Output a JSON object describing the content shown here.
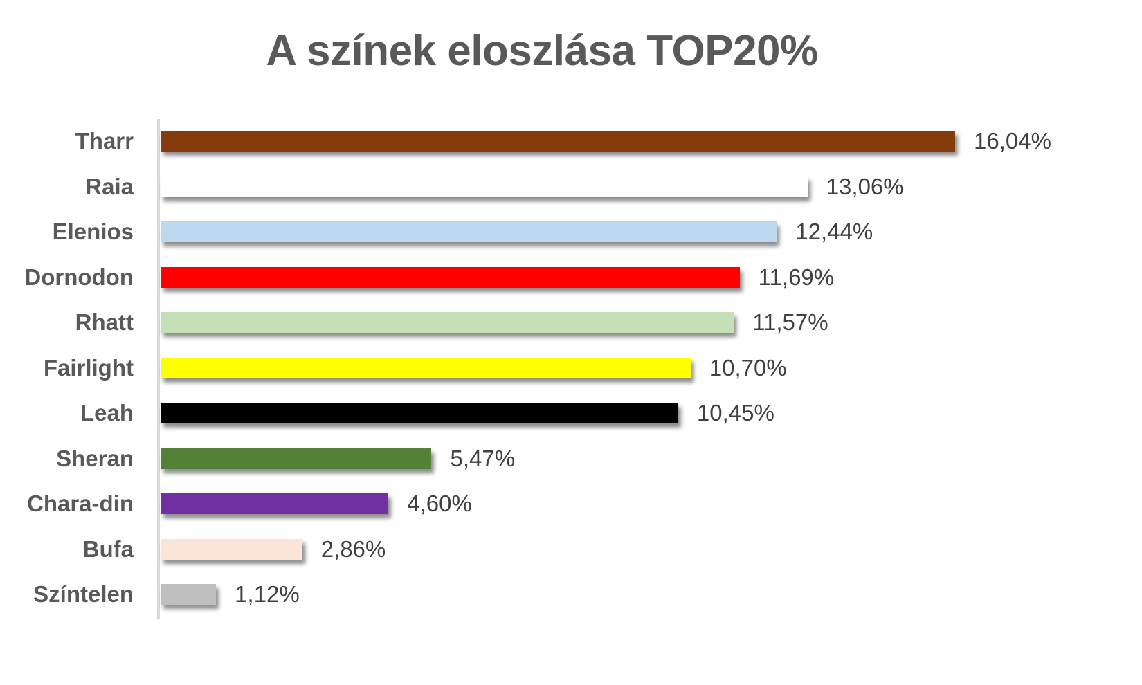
{
  "chart_data": {
    "type": "bar",
    "orientation": "horizontal",
    "title": "A színek eloszlása TOP20%",
    "xlabel": "",
    "ylabel": "",
    "grid": false,
    "legend": null,
    "unit": "%",
    "categories": [
      "Tharr",
      "Raia",
      "Elenios",
      "Dornodon",
      "Rhatt",
      "Fairlight",
      "Leah",
      "Sheran",
      "Chara-din",
      "Bufa",
      "Színtelen"
    ],
    "values": [
      16.04,
      13.06,
      12.44,
      11.69,
      11.57,
      10.7,
      10.45,
      5.47,
      4.6,
      2.86,
      1.12
    ],
    "labels": [
      "16,04%",
      "13,06%",
      "12,44%",
      "11,69%",
      "11,57%",
      "10,70%",
      "10,45%",
      "5,47%",
      "4,60%",
      "2,86%",
      "1,12%"
    ],
    "colors": [
      "#843C0C",
      "#FFFFFF",
      "#BDD7EE",
      "#FF0000",
      "#C5E0B4",
      "#FFFF00",
      "#000000",
      "#538135",
      "#7030A0",
      "#FBE5D6",
      "#BFBFBF"
    ]
  }
}
